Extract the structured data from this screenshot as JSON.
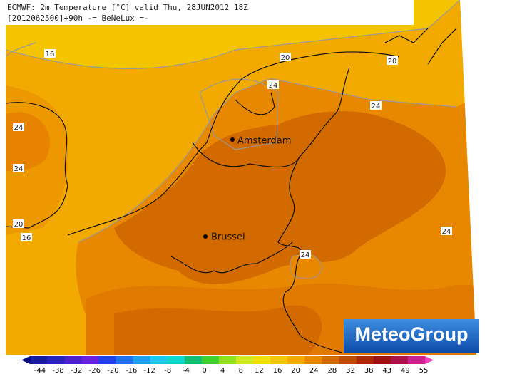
{
  "header": {
    "title_line1": "ECMWF: 2m Temperature [°C] valid Thu, 28JUN2012 18Z",
    "title_line2": "[2012062500]+90h -= BeNeLux =-"
  },
  "contour_labels": [
    "16",
    "20",
    "20",
    "24",
    "24",
    "24",
    "24",
    "20",
    "16",
    "24",
    "24"
  ],
  "cities": [
    "Amsterdam",
    "Brussel"
  ],
  "logo": "MeteoGroup",
  "colorbar": {
    "labels": [
      -44,
      -38,
      -32,
      -26,
      -20,
      -16,
      -12,
      -8,
      -4,
      0,
      4,
      8,
      12,
      16,
      20,
      24,
      28,
      32,
      38,
      43,
      49,
      55
    ]
  }
}
